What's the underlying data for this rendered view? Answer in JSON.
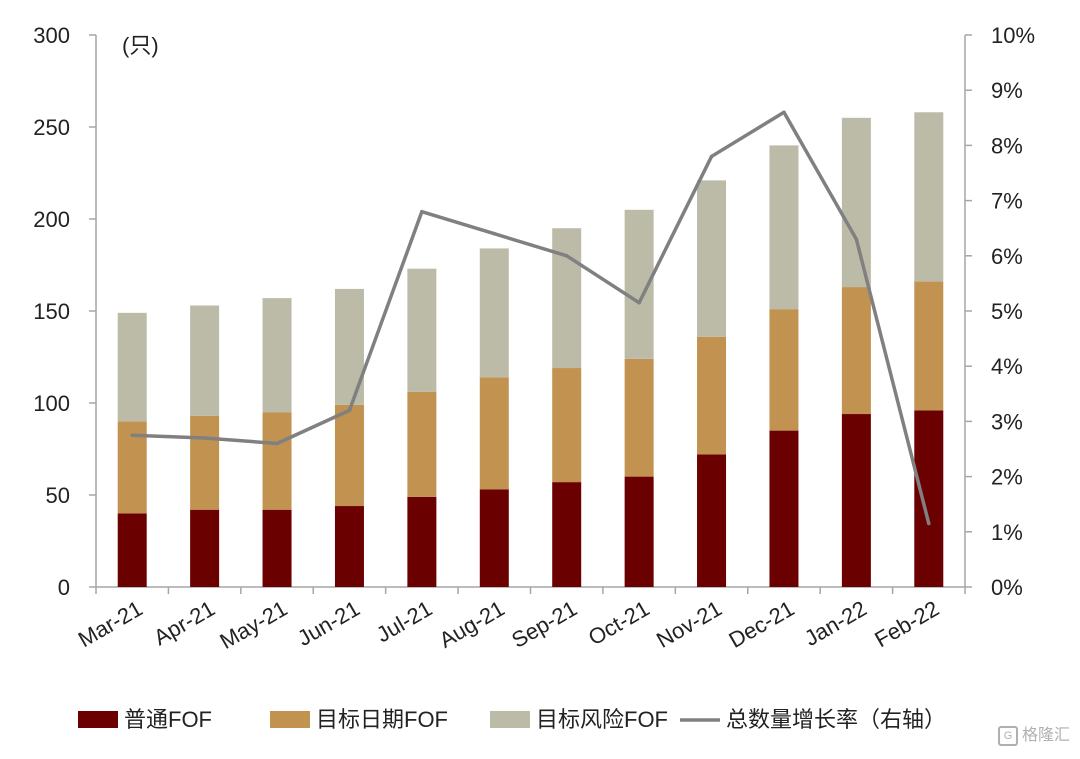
{
  "chart_data": {
    "type": "bar",
    "stacked": true,
    "categories": [
      "Mar-21",
      "Apr-21",
      "May-21",
      "Jun-21",
      "Jul-21",
      "Aug-21",
      "Sep-21",
      "Oct-21",
      "Nov-21",
      "Dec-21",
      "Jan-22",
      "Feb-22"
    ],
    "series": [
      {
        "name": "普通FOF",
        "color": "#6b0000",
        "values": [
          40,
          42,
          42,
          44,
          49,
          53,
          57,
          60,
          72,
          85,
          94,
          96
        ]
      },
      {
        "name": "目标日期FOF",
        "color": "#c19250",
        "values": [
          50,
          51,
          53,
          55,
          57,
          61,
          62,
          64,
          64,
          66,
          69,
          70
        ]
      },
      {
        "name": "目标风险FOF",
        "color": "#bcbba8",
        "values": [
          59,
          60,
          62,
          63,
          67,
          70,
          76,
          81,
          85,
          89,
          92,
          92
        ]
      }
    ],
    "line_series": {
      "name": "总数量增长率（右轴）",
      "color": "#808080",
      "values": [
        2.75,
        2.7,
        2.6,
        3.2,
        6.8,
        6.4,
        6.0,
        5.15,
        7.8,
        8.6,
        6.3,
        1.15
      ]
    },
    "y_left": {
      "unit_label": "(只)",
      "min": 0,
      "max": 300,
      "ticks": [
        "0",
        "50",
        "100",
        "150",
        "200",
        "250",
        "300"
      ]
    },
    "y_right": {
      "min": 0,
      "max": 10,
      "ticks": [
        "0%",
        "1%",
        "2%",
        "3%",
        "4%",
        "5%",
        "6%",
        "7%",
        "8%",
        "9%",
        "10%"
      ]
    },
    "grid": false,
    "legend_position": "bottom"
  },
  "watermark": {
    "text": "格隆汇"
  }
}
